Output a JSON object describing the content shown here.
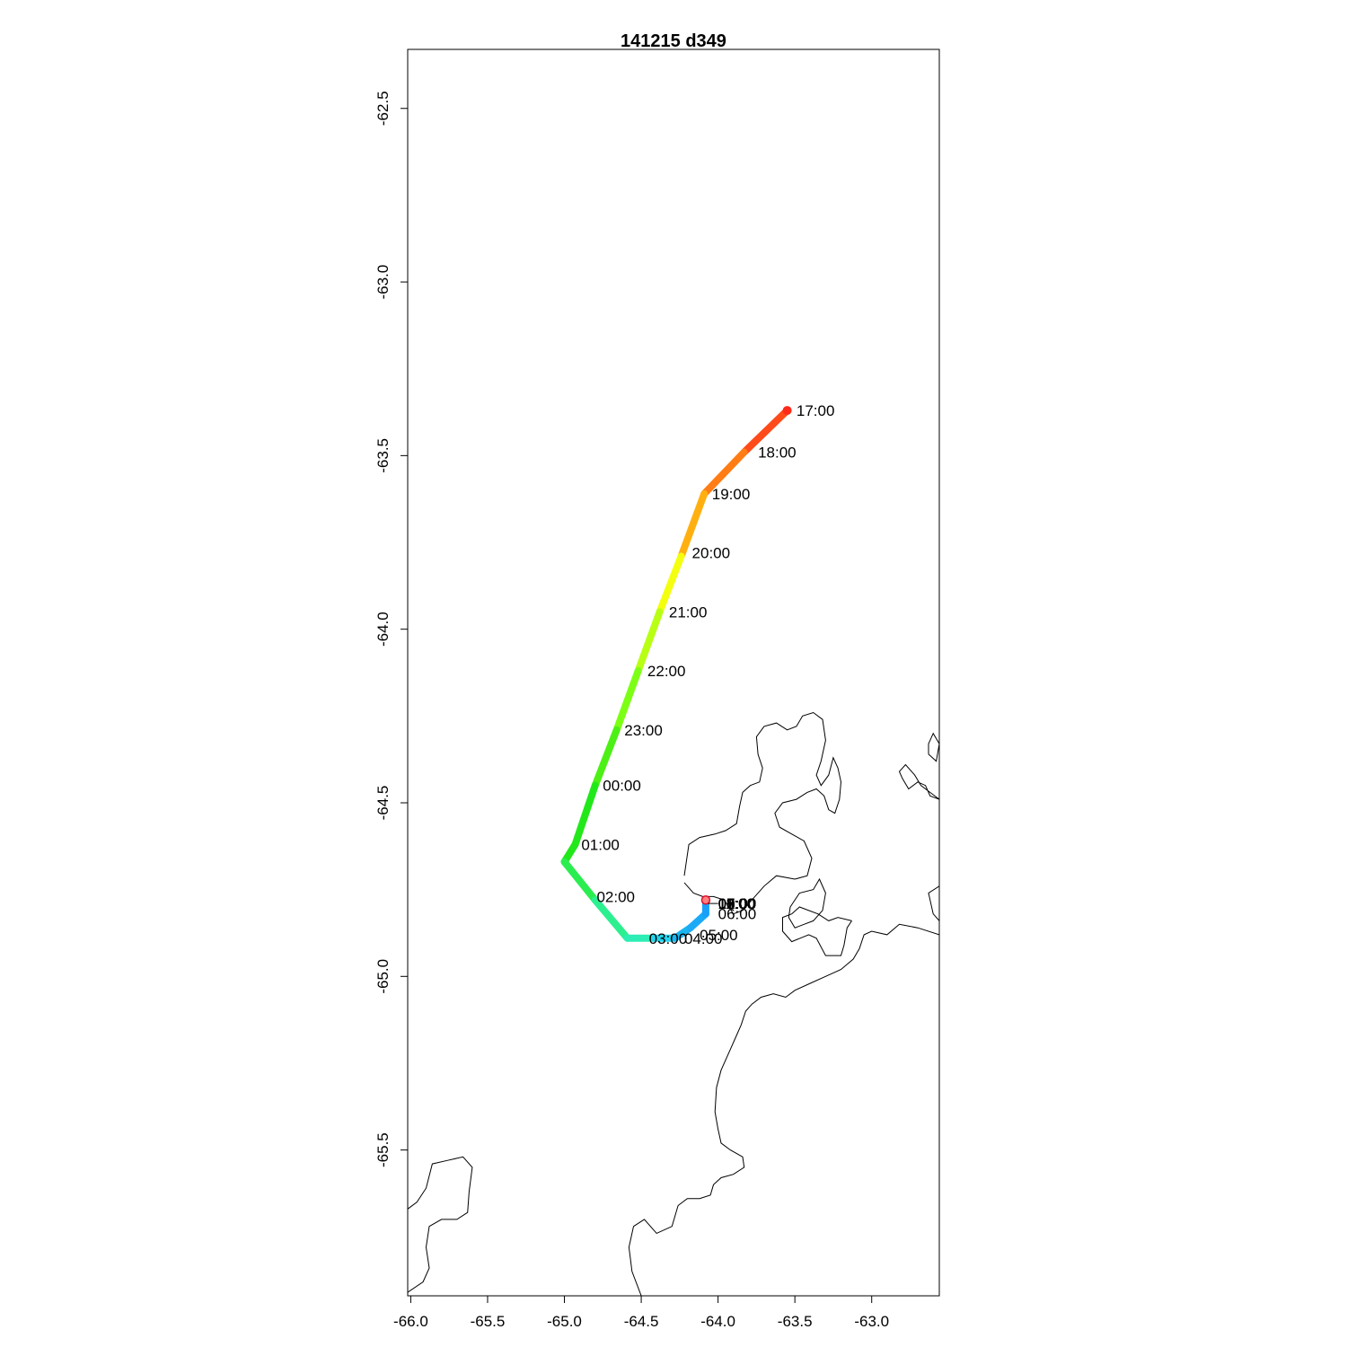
{
  "title": "141215   d349",
  "map": {
    "x_range": [
      -66.02,
      -62.56
    ],
    "y_range": [
      -65.92,
      -62.33
    ],
    "x_ticks": [
      -66.0,
      -65.5,
      -65.0,
      -64.5,
      -64.0,
      -63.5,
      -63.0
    ],
    "x_tick_labels": [
      "-66.0",
      "-65.5",
      "-65.0",
      "-64.5",
      "-64.0",
      "-63.5",
      "-63.0"
    ],
    "y_ticks": [
      -62.5,
      -63.0,
      -63.5,
      -64.0,
      -64.5,
      -65.0,
      -65.5
    ],
    "y_tick_labels": [
      "-62.5",
      "-63.0",
      "-63.5",
      "-64.0",
      "-64.5",
      "-65.0",
      "-65.5"
    ],
    "track": [
      {
        "lon": -63.55,
        "lat": -63.37,
        "time": "17:00",
        "color": "#ff2a1a"
      },
      {
        "lon": -63.83,
        "lat": -63.49,
        "time": "18:00",
        "color": "#ff4a1a"
      },
      {
        "lon": -64.09,
        "lat": -63.61,
        "time": "19:00",
        "color": "#ff7d14"
      },
      {
        "lon": -64.24,
        "lat": -63.79,
        "time": "20:00",
        "color": "#ffb010"
      },
      {
        "lon": -64.38,
        "lat": -63.95,
        "time": "21:00",
        "color": "#f4ff10"
      },
      {
        "lon": -64.52,
        "lat": -64.12,
        "time": "22:00",
        "color": "#b8ff14"
      },
      {
        "lon": -64.66,
        "lat": -64.29,
        "time": "23:00",
        "color": "#7cff14"
      },
      {
        "lon": -64.8,
        "lat": -64.45,
        "time": "00:00",
        "color": "#4cf014"
      },
      {
        "lon": -64.93,
        "lat": -64.62,
        "time": "01:00",
        "color": "#22e81a"
      },
      {
        "lon": -65.0,
        "lat": -64.67,
        "time": "",
        "color": "#22e81a"
      },
      {
        "lon": -64.8,
        "lat": -64.78,
        "time": "02:00",
        "color": "#2aee50"
      },
      {
        "lon": -64.59,
        "lat": -64.89,
        "time": "",
        "color": "#2cf090"
      },
      {
        "lon": -64.42,
        "lat": -64.89,
        "time": "03:00",
        "color": "#2ceeb4"
      },
      {
        "lon": -64.28,
        "lat": -64.89,
        "time": "04:00",
        "color": "#22d4ee"
      },
      {
        "lon": -64.18,
        "lat": -64.86,
        "time": "05:00",
        "color": "#1ab4f0"
      },
      {
        "lon": -64.08,
        "lat": -64.82,
        "time": "06:00",
        "color": "#1aaaf6"
      },
      {
        "lon": -64.08,
        "lat": -64.78,
        "time": "",
        "color": "#1aa0f8"
      }
    ],
    "track_label_positions": {
      "17:00": [
        -63.49,
        -63.37
      ],
      "18:00": [
        -63.74,
        -63.49
      ],
      "19:00": [
        -64.04,
        -63.61
      ],
      "20:00": [
        -64.17,
        -63.78
      ],
      "21:00": [
        -64.32,
        -63.95
      ],
      "22:00": [
        -64.46,
        -64.12
      ],
      "23:00": [
        -64.61,
        -64.29
      ],
      "00:00": [
        -64.75,
        -64.45
      ],
      "01:00": [
        -64.89,
        -64.62
      ],
      "02:00": [
        -64.79,
        -64.77
      ],
      "03:00": [
        -64.45,
        -64.89
      ],
      "04:00": [
        -64.22,
        -64.89
      ],
      "05:00": [
        -64.12,
        -64.88
      ],
      "06:00": [
        -64.0,
        -64.82
      ]
    },
    "overlap_labels": [
      "07:00",
      "08:00",
      "09:00",
      "10:00",
      "11:00",
      "12:00",
      "13:00",
      "14:00",
      "15:00",
      "16:00"
    ],
    "overlap_position": [
      -64.07,
      -64.79
    ],
    "start_point": {
      "lon": -64.08,
      "lat": -64.78
    },
    "coastlines": [
      [
        [
          -64.22,
          -64.71
        ],
        [
          -64.19,
          -64.62
        ],
        [
          -64.12,
          -64.6
        ],
        [
          -64.02,
          -64.59
        ],
        [
          -63.95,
          -64.58
        ],
        [
          -63.88,
          -64.56
        ],
        [
          -63.86,
          -64.51
        ],
        [
          -63.84,
          -64.47
        ],
        [
          -63.79,
          -64.45
        ],
        [
          -63.73,
          -64.44
        ],
        [
          -63.71,
          -64.4
        ],
        [
          -63.74,
          -64.36
        ],
        [
          -63.75,
          -64.31
        ],
        [
          -63.7,
          -64.28
        ],
        [
          -63.62,
          -64.27
        ],
        [
          -63.55,
          -64.29
        ],
        [
          -63.49,
          -64.28
        ],
        [
          -63.45,
          -64.25
        ],
        [
          -63.38,
          -64.24
        ],
        [
          -63.32,
          -64.26
        ],
        [
          -63.3,
          -64.32
        ],
        [
          -63.33,
          -64.38
        ],
        [
          -63.36,
          -64.42
        ],
        [
          -63.33,
          -64.45
        ],
        [
          -63.28,
          -64.42
        ],
        [
          -63.25,
          -64.37
        ],
        [
          -63.22,
          -64.4
        ],
        [
          -63.2,
          -64.44
        ],
        [
          -63.21,
          -64.49
        ],
        [
          -63.24,
          -64.53
        ],
        [
          -63.28,
          -64.52
        ],
        [
          -63.31,
          -64.48
        ],
        [
          -63.36,
          -64.46
        ],
        [
          -63.42,
          -64.47
        ],
        [
          -63.49,
          -64.49
        ],
        [
          -63.58,
          -64.5
        ],
        [
          -63.63,
          -64.53
        ],
        [
          -63.6,
          -64.57
        ],
        [
          -63.52,
          -64.59
        ],
        [
          -63.44,
          -64.61
        ],
        [
          -63.39,
          -64.66
        ],
        [
          -63.42,
          -64.71
        ],
        [
          -63.5,
          -64.72
        ],
        [
          -63.62,
          -64.71
        ],
        [
          -63.7,
          -64.74
        ],
        [
          -63.78,
          -64.78
        ],
        [
          -63.84,
          -64.81
        ],
        [
          -63.9,
          -64.82
        ],
        [
          -63.96,
          -64.78
        ],
        [
          -64.03,
          -64.77
        ],
        [
          -64.1,
          -64.77
        ],
        [
          -64.16,
          -64.76
        ],
        [
          -64.22,
          -64.73
        ]
      ],
      [
        [
          -63.53,
          -64.8
        ],
        [
          -63.47,
          -64.76
        ],
        [
          -63.38,
          -64.75
        ],
        [
          -63.34,
          -64.72
        ],
        [
          -63.3,
          -64.76
        ],
        [
          -63.32,
          -64.81
        ],
        [
          -63.38,
          -64.84
        ],
        [
          -63.44,
          -64.85
        ],
        [
          -63.5,
          -64.86
        ],
        [
          -63.54,
          -64.83
        ],
        [
          -63.53,
          -64.8
        ]
      ],
      [
        [
          -62.63,
          -64.36
        ],
        [
          -62.58,
          -64.38
        ],
        [
          -62.56,
          -64.33
        ],
        [
          -62.6,
          -64.3
        ],
        [
          -62.63,
          -64.33
        ],
        [
          -62.63,
          -64.36
        ]
      ],
      [
        [
          -62.56,
          -64.49
        ],
        [
          -62.62,
          -64.48
        ],
        [
          -62.65,
          -64.45
        ],
        [
          -62.7,
          -64.44
        ],
        [
          -62.76,
          -64.46
        ],
        [
          -62.8,
          -64.43
        ],
        [
          -62.82,
          -64.41
        ],
        [
          -62.78,
          -64.39
        ],
        [
          -62.72,
          -64.42
        ],
        [
          -62.68,
          -64.45
        ],
        [
          -62.62,
          -64.47
        ],
        [
          -62.56,
          -64.49
        ]
      ],
      [
        [
          -62.56,
          -64.74
        ],
        [
          -62.63,
          -64.76
        ],
        [
          -62.6,
          -64.82
        ],
        [
          -62.56,
          -64.84
        ]
      ],
      [
        [
          -63.13,
          -64.84
        ],
        [
          -63.16,
          -64.86
        ],
        [
          -63.18,
          -64.91
        ],
        [
          -63.2,
          -64.94
        ],
        [
          -63.3,
          -64.94
        ],
        [
          -63.36,
          -64.89
        ],
        [
          -63.41,
          -64.88
        ],
        [
          -63.52,
          -64.9
        ],
        [
          -63.58,
          -64.87
        ],
        [
          -63.58,
          -64.83
        ],
        [
          -63.52,
          -64.82
        ],
        [
          -63.47,
          -64.8
        ],
        [
          -63.35,
          -64.82
        ],
        [
          -63.28,
          -64.84
        ],
        [
          -63.22,
          -64.83
        ],
        [
          -63.13,
          -64.84
        ]
      ],
      [
        [
          -62.56,
          -64.88
        ],
        [
          -62.7,
          -64.86
        ],
        [
          -62.82,
          -64.85
        ],
        [
          -62.9,
          -64.88
        ],
        [
          -63.0,
          -64.87
        ],
        [
          -63.05,
          -64.88
        ],
        [
          -63.08,
          -64.92
        ],
        [
          -63.12,
          -64.95
        ],
        [
          -63.2,
          -64.98
        ],
        [
          -63.3,
          -65.0
        ],
        [
          -63.4,
          -65.02
        ],
        [
          -63.5,
          -65.04
        ],
        [
          -63.56,
          -65.06
        ],
        [
          -63.64,
          -65.05
        ],
        [
          -63.72,
          -65.06
        ],
        [
          -63.78,
          -65.08
        ],
        [
          -63.82,
          -65.1
        ],
        [
          -63.85,
          -65.14
        ],
        [
          -63.88,
          -65.17
        ],
        [
          -63.93,
          -65.22
        ],
        [
          -63.98,
          -65.27
        ],
        [
          -64.01,
          -65.32
        ],
        [
          -64.02,
          -65.39
        ],
        [
          -64.0,
          -65.44
        ],
        [
          -63.98,
          -65.48
        ],
        [
          -63.92,
          -65.5
        ],
        [
          -63.84,
          -65.52
        ],
        [
          -63.83,
          -65.55
        ],
        [
          -63.9,
          -65.57
        ],
        [
          -63.98,
          -65.58
        ],
        [
          -64.03,
          -65.6
        ],
        [
          -64.05,
          -65.63
        ],
        [
          -64.12,
          -65.64
        ],
        [
          -64.2,
          -65.64
        ],
        [
          -64.26,
          -65.66
        ],
        [
          -64.3,
          -65.72
        ],
        [
          -64.4,
          -65.74
        ],
        [
          -64.48,
          -65.7
        ],
        [
          -64.55,
          -65.72
        ],
        [
          -64.58,
          -65.78
        ],
        [
          -64.56,
          -65.85
        ],
        [
          -64.5,
          -65.92
        ]
      ],
      [
        [
          -66.02,
          -65.67
        ],
        [
          -65.96,
          -65.65
        ],
        [
          -65.9,
          -65.61
        ],
        [
          -65.86,
          -65.54
        ],
        [
          -65.76,
          -65.53
        ],
        [
          -65.66,
          -65.52
        ],
        [
          -65.6,
          -65.55
        ],
        [
          -65.62,
          -65.62
        ],
        [
          -65.63,
          -65.68
        ],
        [
          -65.7,
          -65.7
        ],
        [
          -65.8,
          -65.7
        ],
        [
          -65.88,
          -65.72
        ],
        [
          -65.9,
          -65.78
        ],
        [
          -65.88,
          -65.84
        ],
        [
          -65.92,
          -65.88
        ],
        [
          -66.02,
          -65.91
        ]
      ]
    ]
  }
}
